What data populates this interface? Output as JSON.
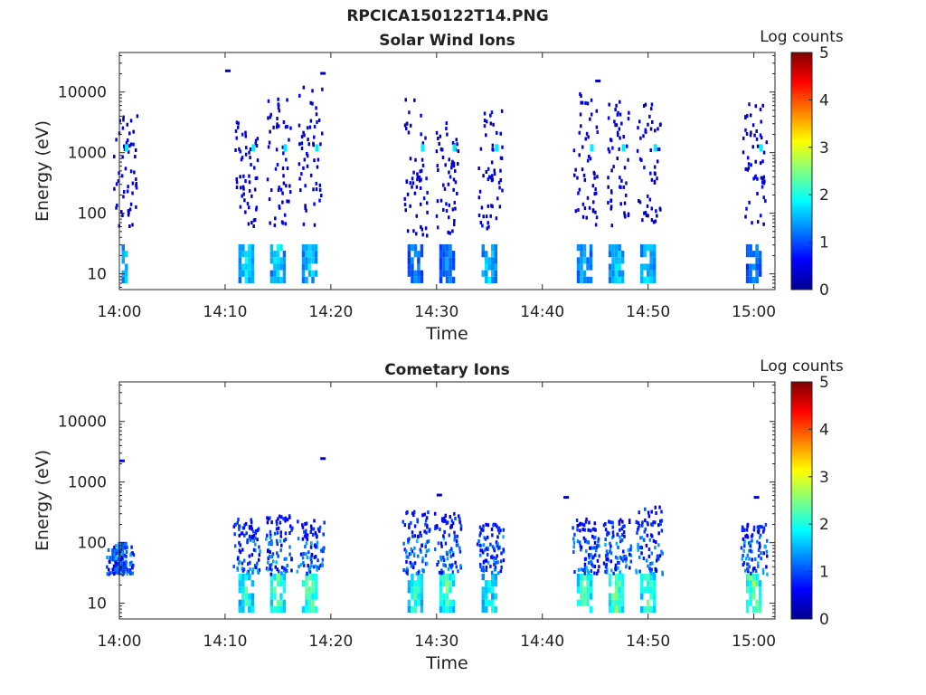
{
  "figure_title": "RPCICA150122T14.PNG",
  "colors": {
    "jet_scale": [
      "#00008f",
      "#0000ff",
      "#0080ff",
      "#00ffff",
      "#80ff80",
      "#ffff00",
      "#ff8000",
      "#ff0000",
      "#800000"
    ],
    "axis": "#262626",
    "background": "#ffffff"
  },
  "chart_data": [
    {
      "type": "heatmap",
      "title": "Solar Wind Ions",
      "xlabel": "Time",
      "ylabel": "Energy (eV)",
      "y_scale": "log",
      "ylim": [
        5.5,
        45000
      ],
      "xlim": [
        "14:00",
        "15:02"
      ],
      "x_ticks": [
        "14:00",
        "14:10",
        "14:20",
        "14:30",
        "14:40",
        "14:50",
        "15:00"
      ],
      "y_ticks": [
        10,
        100,
        1000,
        10000
      ],
      "y_tick_labels": [
        "10",
        "100",
        "1000",
        "10000"
      ],
      "colorbar": {
        "label": "Log counts",
        "range": [
          0,
          5
        ],
        "ticks": [
          "0",
          "1",
          "2",
          "3",
          "4",
          "5"
        ]
      },
      "grid": false,
      "bursts": [
        {
          "t": "14:00",
          "low_energy": [
            7,
            28
          ],
          "mid_energy": [
            60,
            6000
          ],
          "peak_log_counts": 2.0
        },
        {
          "t": "14:12",
          "low_energy": [
            7,
            28
          ],
          "mid_energy": [
            60,
            3500
          ],
          "peak_log_counts": 2.0
        },
        {
          "t": "14:15",
          "low_energy": [
            7,
            28
          ],
          "mid_energy": [
            60,
            8000
          ],
          "peak_log_counts": 2.0
        },
        {
          "t": "14:18",
          "low_energy": [
            7,
            28
          ],
          "mid_energy": [
            60,
            12000
          ],
          "peak_log_counts": 2.0
        },
        {
          "t": "14:28",
          "low_energy": [
            7,
            28
          ],
          "mid_energy": [
            40,
            8000
          ],
          "peak_log_counts": 1.5
        },
        {
          "t": "14:31",
          "low_energy": [
            7,
            28
          ],
          "mid_energy": [
            40,
            3500
          ],
          "peak_log_counts": 1.5
        },
        {
          "t": "14:35",
          "low_energy": [
            7,
            28
          ],
          "mid_energy": [
            40,
            5000
          ],
          "peak_log_counts": 2.0
        },
        {
          "t": "14:44",
          "low_energy": [
            7,
            28
          ],
          "mid_energy": [
            60,
            10000
          ],
          "peak_log_counts": 1.8
        },
        {
          "t": "14:47",
          "low_energy": [
            7,
            28
          ],
          "mid_energy": [
            60,
            8000
          ],
          "peak_log_counts": 2.0
        },
        {
          "t": "14:50",
          "low_energy": [
            7,
            28
          ],
          "mid_energy": [
            60,
            9000
          ],
          "peak_log_counts": 2.0
        },
        {
          "t": "15:00",
          "low_energy": [
            7,
            28
          ],
          "mid_energy": [
            60,
            7000
          ],
          "peak_log_counts": 1.5
        }
      ],
      "isolated_points": [
        {
          "t": "14:10",
          "energy": 22000,
          "log_counts": 0.3
        },
        {
          "t": "14:19",
          "energy": 20000,
          "log_counts": 0.3
        },
        {
          "t": "14:45",
          "energy": 15000,
          "log_counts": 0.3
        }
      ]
    },
    {
      "type": "heatmap",
      "title": "Cometary Ions",
      "xlabel": "Time",
      "ylabel": "Energy (eV)",
      "y_scale": "log",
      "ylim": [
        5.5,
        45000
      ],
      "xlim": [
        "14:00",
        "15:02"
      ],
      "x_ticks": [
        "14:00",
        "14:10",
        "14:20",
        "14:30",
        "14:40",
        "14:50",
        "15:00"
      ],
      "y_ticks": [
        10,
        100,
        1000,
        10000
      ],
      "y_tick_labels": [
        "10",
        "100",
        "1000",
        "10000"
      ],
      "colorbar": {
        "label": "Log counts",
        "range": [
          0,
          5
        ],
        "ticks": [
          "0",
          "1",
          "2",
          "3",
          "4",
          "5"
        ]
      },
      "grid": false,
      "bursts": [
        {
          "t": "14:00",
          "low_energy": [
            30,
            90
          ],
          "mid_energy": [
            30,
            90
          ],
          "peak_log_counts": 1.5
        },
        {
          "t": "14:12",
          "low_energy": [
            7,
            28
          ],
          "mid_energy": [
            30,
            250
          ],
          "peak_log_counts": 2.5
        },
        {
          "t": "14:15",
          "low_energy": [
            7,
            28
          ],
          "mid_energy": [
            30,
            300
          ],
          "peak_log_counts": 2.7
        },
        {
          "t": "14:18",
          "low_energy": [
            7,
            28
          ],
          "mid_energy": [
            30,
            250
          ],
          "peak_log_counts": 2.8
        },
        {
          "t": "14:28",
          "low_energy": [
            7,
            28
          ],
          "mid_energy": [
            30,
            350
          ],
          "peak_log_counts": 2.4
        },
        {
          "t": "14:31",
          "low_energy": [
            7,
            28
          ],
          "mid_energy": [
            30,
            300
          ],
          "peak_log_counts": 2.7
        },
        {
          "t": "14:35",
          "low_energy": [
            7,
            28
          ],
          "mid_energy": [
            30,
            200
          ],
          "peak_log_counts": 2.3
        },
        {
          "t": "14:44",
          "low_energy": [
            7,
            28
          ],
          "mid_energy": [
            30,
            250
          ],
          "peak_log_counts": 2.6
        },
        {
          "t": "14:47",
          "low_energy": [
            7,
            28
          ],
          "mid_energy": [
            30,
            250
          ],
          "peak_log_counts": 2.8
        },
        {
          "t": "14:50",
          "low_energy": [
            7,
            28
          ],
          "mid_energy": [
            30,
            400
          ],
          "peak_log_counts": 2.7
        },
        {
          "t": "15:00",
          "low_energy": [
            7,
            28
          ],
          "mid_energy": [
            30,
            200
          ],
          "peak_log_counts": 2.9
        }
      ],
      "isolated_points": [
        {
          "t": "14:00",
          "energy": 2200,
          "log_counts": 0.5
        },
        {
          "t": "14:19",
          "energy": 2400,
          "log_counts": 0.5
        },
        {
          "t": "14:30",
          "energy": 600,
          "log_counts": 0.3
        },
        {
          "t": "14:42",
          "energy": 550,
          "log_counts": 0.3
        },
        {
          "t": "15:00",
          "energy": 550,
          "log_counts": 0.3
        }
      ]
    }
  ]
}
